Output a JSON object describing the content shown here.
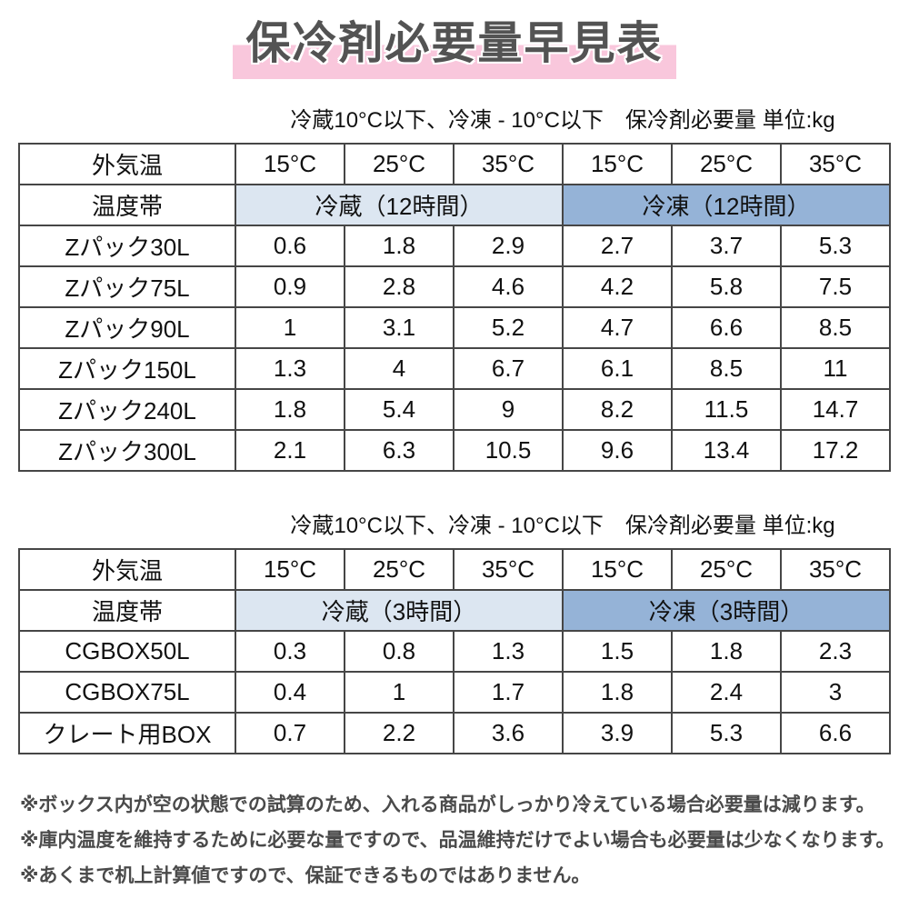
{
  "title": "保冷剤必要量早見表",
  "colors": {
    "title_text": "#535353",
    "title_highlight_pink": "#f9c7dc",
    "band_refrigerate_blue": "#dce6f1",
    "band_freeze_blue": "#95b3d7",
    "table_border": "#464646",
    "note_text": "#4a4a4a"
  },
  "tables": [
    {
      "subtitle": "冷蔵10°C以下、冷凍 - 10°C以下　保冷剤必要量 単位:kg",
      "header": {
        "row1_label": "外気温",
        "row2_label": "温度帯",
        "temps": [
          "15°C",
          "25°C",
          "35°C",
          "15°C",
          "25°C",
          "35°C"
        ],
        "band_refrigerate": "冷蔵（12時間）",
        "band_freeze": "冷凍（12時間）"
      },
      "rows": [
        {
          "label": "Zパック30L",
          "values": [
            "0.6",
            "1.8",
            "2.9",
            "2.7",
            "3.7",
            "5.3"
          ]
        },
        {
          "label": "Zパック75L",
          "values": [
            "0.9",
            "2.8",
            "4.6",
            "4.2",
            "5.8",
            "7.5"
          ]
        },
        {
          "label": "Zパック90L",
          "values": [
            "1",
            "3.1",
            "5.2",
            "4.7",
            "6.6",
            "8.5"
          ]
        },
        {
          "label": "Zパック150L",
          "values": [
            "1.3",
            "4",
            "6.7",
            "6.1",
            "8.5",
            "11"
          ]
        },
        {
          "label": "Zパック240L",
          "values": [
            "1.8",
            "5.4",
            "9",
            "8.2",
            "11.5",
            "14.7"
          ]
        },
        {
          "label": "Zパック300L",
          "values": [
            "2.1",
            "6.3",
            "10.5",
            "9.6",
            "13.4",
            "17.2"
          ]
        }
      ]
    },
    {
      "subtitle": "冷蔵10°C以下、冷凍 - 10°C以下　保冷剤必要量 単位:kg",
      "header": {
        "row1_label": "外気温",
        "row2_label": "温度帯",
        "temps": [
          "15°C",
          "25°C",
          "35°C",
          "15°C",
          "25°C",
          "35°C"
        ],
        "band_refrigerate": "冷蔵（3時間）",
        "band_freeze": "冷凍（3時間）"
      },
      "rows": [
        {
          "label": "CGBOX50L",
          "values": [
            "0.3",
            "0.8",
            "1.3",
            "1.5",
            "1.8",
            "2.3"
          ]
        },
        {
          "label": "CGBOX75L",
          "values": [
            "0.4",
            "1",
            "1.7",
            "1.8",
            "2.4",
            "3"
          ]
        },
        {
          "label": "クレート用BOX",
          "values": [
            "0.7",
            "2.2",
            "3.6",
            "3.9",
            "5.3",
            "6.6"
          ]
        }
      ]
    }
  ],
  "notes": [
    "※ボックス内が空の状態での試算のため、入れる商品がしっかり冷えている場合必要量は減ります。",
    "※庫内温度を維持するために必要な量ですので、品温維持だけでよい場合も必要量は少なくなります。",
    "※あくまで机上計算値ですので、保証できるものではありません。"
  ]
}
